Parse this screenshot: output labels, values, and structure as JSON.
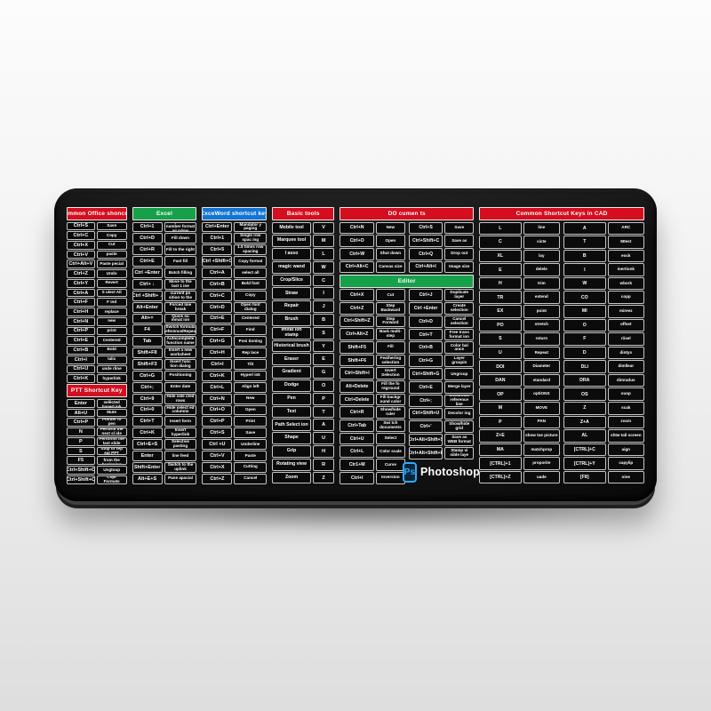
{
  "colors": {
    "red": "#d40d1f",
    "green": "#17a04a",
    "blue": "#1374d4",
    "ps_blue": "#31a8ff"
  },
  "photoshop": {
    "icon_text": "Ps",
    "label": "Photoshop"
  },
  "pad": {
    "columns": [
      {
        "sections": [
          {
            "header": {
              "label": "Common Office shonculs",
              "color": "#d40d1f"
            },
            "halves": [
              {
                "rows": [
                  [
                    "Ctrl+S",
                    "Save"
                  ],
                  [
                    "Ctrl+C",
                    "Copy"
                  ],
                  [
                    "Ctrl+X",
                    "Cut"
                  ],
                  [
                    "Ctrl+V",
                    "paste"
                  ],
                  [
                    "Ctrl+Alt+V",
                    "Paste pecial"
                  ],
                  [
                    "Ctrl+Z",
                    "Undo"
                  ],
                  [
                    "Ctrl+Y",
                    "Revert"
                  ],
                  [
                    "Ctrl+A",
                    "S ulect All"
                  ],
                  [
                    "Ctrl+F",
                    "F ind"
                  ],
                  [
                    "Ctrl+H",
                    "replace"
                  ],
                  [
                    "Ctrl+N",
                    "new"
                  ],
                  [
                    "Ctrl+P",
                    "print"
                  ],
                  [
                    "Ctrl+E",
                    "Centered"
                  ],
                  [
                    "Ctrl+B",
                    "Bold"
                  ],
                  [
                    "Ctrl+I",
                    "talic"
                  ],
                  [
                    "Ctrl+U",
                    "unde rline"
                  ],
                  [
                    "Ctrl+K",
                    "hyperlink"
                  ]
                ]
              }
            ]
          },
          {
            "header": {
              "label": "PTT Shortcut Key",
              "color": "#d40d1f"
            },
            "halves": [
              {
                "rows": [
                  [
                    "Enter",
                    "Open selected hyperl ink"
                  ],
                  [
                    "Alt+U",
                    "Mute"
                  ],
                  [
                    "Ctrl+P",
                    "Pointer to pen"
                  ],
                  [
                    "N",
                    "Perform the next sl ide"
                  ],
                  [
                    "P",
                    "Performs the last slide"
                  ],
                  [
                    "S",
                    "Stop or rep eat PPT"
                  ],
                  [
                    "F5",
                    "Run PPT from the beginning"
                  ],
                  [
                    "Ctrl+Shift+O",
                    "Ungtoup"
                  ],
                  [
                    "Ctrl+Shift+C",
                    "Copr Formats"
                  ]
                ]
              }
            ]
          }
        ]
      },
      {
        "sections": [
          {
            "header": {
              "label": "Excel",
              "color": "#17a04a"
            },
            "halves": [
              {
                "rows": [
                  [
                    "Ctrl+1",
                    "Open the number format wi ndow"
                  ],
                  [
                    "Ctrl+D",
                    "Fill down"
                  ],
                  [
                    "Ctrl+R",
                    "Fill to the right"
                  ],
                  [
                    "Ctrl+E",
                    "Fast fill"
                  ],
                  [
                    "Ctrl +Enter",
                    "Batch filling"
                  ],
                  [
                    "Ctrl+ ↓",
                    "Move to the last 1 ine"
                  ],
                  [
                    "Ctrl +Shift+ ↓",
                    "Check the current po sition to the last 1 ine"
                  ],
                  [
                    "Alt+Enter",
                    "Forced line break"
                  ],
                  [
                    "Alt+=",
                    "Quick su mmat ion"
                  ],
                  [
                    "F4",
                    "Switch formula reference/Repeat"
                  ],
                  [
                    "Tab",
                    "Autocomplete function name"
                  ],
                  [
                    "Shift+FII",
                    "Insert a new worksheet"
                  ],
                  [
                    "Shift+F3",
                    "Insert func tion dialog"
                  ],
                  [
                    "Ctrl+G",
                    "Positioning"
                  ],
                  [
                    "Ctrl+;",
                    "Enter date"
                  ],
                  [
                    "Ctrl+9",
                    "Hide sele cted rows"
                  ],
                  [
                    "Ctrl+0",
                    "Hide select ed columns"
                  ],
                  [
                    "Ctrl+T",
                    "Insert form"
                  ],
                  [
                    "Ctrl+K",
                    "Insert hyperlink"
                  ],
                  [
                    "Ctrl+E+S",
                    "Selective pasting"
                  ],
                  [
                    "Enter",
                    "line feed"
                  ],
                  [
                    "Shift+Enter",
                    "Switch to the uplink"
                  ],
                  [
                    "Alt+E+S",
                    "Pane apacial"
                  ]
                ]
              }
            ]
          }
        ]
      },
      {
        "sections": [
          {
            "header": {
              "label": "ExceWord shortcut key",
              "color": "#1374d4"
            },
            "halves": [
              {
                "rows": [
                  [
                    "Ctrl+Enter",
                    "Mandator y paging"
                  ],
                  [
                    "Ctrl+1",
                    "Single row spac ing"
                  ],
                  [
                    "Ctrl+5",
                    "1.5 times row spacing"
                  ],
                  [
                    "Ctrl +Shift+C",
                    "Copy format"
                  ],
                  [
                    "Ctrl+A",
                    "select all"
                  ],
                  [
                    "Ctrl+B",
                    "Bold font"
                  ],
                  [
                    "Ctrl+C",
                    "Copy"
                  ],
                  [
                    "Ctrl+D",
                    "Open font dialog"
                  ],
                  [
                    "Ctrl+E",
                    "Centered"
                  ],
                  [
                    "Ctrl+F",
                    "Find"
                  ],
                  [
                    "Ctrl+G",
                    "Posi tioning"
                  ],
                  [
                    "Ctrl+H",
                    "Rep lace"
                  ],
                  [
                    "Ctrl+I",
                    "Tilt"
                  ],
                  [
                    "Ctrl+K",
                    "Hyperl ink"
                  ],
                  [
                    "Ctrl+L",
                    "Align left"
                  ],
                  [
                    "Ctrl+N",
                    "New"
                  ],
                  [
                    "Ctrl+O",
                    "Open"
                  ],
                  [
                    "Ctrl+P",
                    "Print"
                  ],
                  [
                    "Ctrl+S",
                    "Save"
                  ],
                  [
                    "Ctrl +U",
                    "Underline"
                  ],
                  [
                    "Ctrl+V",
                    "Paste"
                  ],
                  [
                    "Ctrl+X",
                    "Cutting"
                  ],
                  [
                    "Ctrl+Z",
                    "Cancel"
                  ]
                ]
              }
            ]
          }
        ]
      },
      {
        "sections": [
          {
            "header": {
              "label": "Basic tools",
              "color": "#d40d1f"
            },
            "halves": [
              {
                "rows": [
                  [
                    "Mobile tool",
                    "V"
                  ],
                  [
                    "Marquee tool",
                    "M"
                  ],
                  [
                    "I asso",
                    "L"
                  ],
                  [
                    "magic wand",
                    "W"
                  ],
                  [
                    "Crop/Slice",
                    "C"
                  ],
                  [
                    "Straw",
                    "I"
                  ],
                  [
                    "Repair",
                    "J"
                  ],
                  [
                    "Brush",
                    "B"
                  ],
                  [
                    "Imitat ion stamp",
                    "S"
                  ],
                  [
                    "Historical brush",
                    "Y"
                  ],
                  [
                    "Eraser",
                    "E"
                  ],
                  [
                    "Gradient",
                    "G"
                  ],
                  [
                    "Dodge",
                    "O"
                  ],
                  [
                    "Pen",
                    "P"
                  ],
                  [
                    "Text",
                    "T"
                  ],
                  [
                    "Path Select ion",
                    "A"
                  ],
                  [
                    "Shape",
                    "U"
                  ],
                  [
                    "Grip",
                    "H"
                  ],
                  [
                    "Rotating view",
                    "R"
                  ],
                  [
                    "Zoom",
                    "Z"
                  ]
                ]
              }
            ]
          }
        ]
      },
      {
        "sections": [
          {
            "header": {
              "label": "DO cumen ts",
              "color": "#d40d1f"
            },
            "halves": [
              {
                "rows": [
                  [
                    "Ctrl+N",
                    "New"
                  ],
                  [
                    "Ctrl+O",
                    "Open"
                  ],
                  [
                    "Ctrl+W",
                    "Shut down"
                  ],
                  [
                    "Ctrl+Alt+C",
                    "Canvas size"
                  ]
                ]
              },
              {
                "rows": [
                  [
                    "Ctrl+S",
                    "Save"
                  ],
                  [
                    "Ctrl+Shift+C",
                    "Save as"
                  ],
                  [
                    "Ctrl+Q",
                    "Drop out"
                  ],
                  [
                    "Ctrl+Alt+I",
                    "Image size"
                  ]
                ]
              }
            ]
          },
          {
            "header": {
              "label": "Editor",
              "color": "#17a04a"
            },
            "halves": [
              {
                "rows": [
                  [
                    "Ctrl+X",
                    "Cut"
                  ],
                  [
                    "Ctrl+Z",
                    "Step Backward"
                  ],
                  [
                    "Ctrl+Shift+Z",
                    "Step Forward"
                  ],
                  [
                    "Ctrl+Alt+Z",
                    "Back multi-step"
                  ],
                  [
                    "Shift+F5",
                    "Fill"
                  ],
                  [
                    "Shift+F6",
                    "Feathering selection"
                  ],
                  [
                    "Ctrl+Shift+I",
                    "Invert Selection"
                  ],
                  [
                    "Alt+Delete",
                    "Fill the fo reground"
                  ],
                  [
                    "Ctrl+Delete",
                    "Fill backgr ound color"
                  ],
                  [
                    "Ctrl+R",
                    "Show/hide ruler"
                  ],
                  [
                    "Ctrl+Tab",
                    "Swi tch documents"
                  ],
                  [
                    "Ctrl+U",
                    "Select"
                  ],
                  [
                    "Ctrl+L",
                    "Color scale"
                  ],
                  [
                    "Ctr1+M",
                    "Curve"
                  ],
                  [
                    "Ctrl+I",
                    "Inversion"
                  ]
                ]
              },
              {
                "logo": true,
                "rows": [
                  [
                    "Ctrl+J",
                    "Duplicate layer"
                  ],
                  [
                    "Ctrl +Enter",
                    "Create selection"
                  ],
                  [
                    "Ctrl+D",
                    "Cancel selection"
                  ],
                  [
                    "Ctrl+T",
                    "Free trans format ion"
                  ],
                  [
                    "Ctrl+B",
                    "Color bal ance"
                  ],
                  [
                    "Ctrl+G",
                    "Layer groupin"
                  ],
                  [
                    "Ctrl+Shift+G",
                    "Ungroup"
                  ],
                  [
                    "Ctrl+E",
                    "Merge layer"
                  ],
                  [
                    "Ctrl+;",
                    "Show/hide reference line"
                  ],
                  [
                    "Ctrl+Shift+U",
                    "Decolor ing"
                  ],
                  [
                    "Ctrl+'",
                    "Show/hide grid"
                  ],
                  [
                    "Ctrl+Alt+Shift+S",
                    "Save as WEB format"
                  ],
                  [
                    "Ctrl+Alt+Shift+E",
                    "Stamp vi sible laye"
                  ]
                ]
              }
            ]
          }
        ]
      },
      {
        "sections": [
          {
            "header": {
              "label": "Common Shortcut Keys in CAD",
              "color": "#d40d1f"
            },
            "halves": [
              {
                "rows": [
                  [
                    "L",
                    "line"
                  ],
                  [
                    "C",
                    "cicte"
                  ],
                  [
                    "XL",
                    "lay"
                  ],
                  [
                    "E",
                    "delele"
                  ],
                  [
                    "H",
                    "trim"
                  ],
                  [
                    "TR",
                    "extend"
                  ],
                  [
                    "EX",
                    "point"
                  ],
                  [
                    "PO",
                    "stretch"
                  ],
                  [
                    "S",
                    "roturn"
                  ],
                  [
                    "U",
                    "Repeat"
                  ],
                  [
                    "DOI",
                    "Diameter"
                  ],
                  [
                    "DAN",
                    "standard"
                  ],
                  [
                    "OP",
                    "optiONS"
                  ],
                  [
                    "M",
                    "MOVE"
                  ],
                  [
                    "P",
                    "PAN"
                  ],
                  [
                    "Z+E",
                    "show tue picture"
                  ],
                  [
                    "MA",
                    "matchprop"
                  ],
                  [
                    "[CTRL]+1",
                    "proporite"
                  ],
                  [
                    "[CTRL]+Z",
                    "uade"
                  ]
                ]
              },
              {
                "rows": [
                  [
                    "A",
                    "ARC"
                  ],
                  [
                    "T",
                    "Mtest"
                  ],
                  [
                    "B",
                    "eock"
                  ],
                  [
                    "I",
                    "inertionk"
                  ],
                  [
                    "W",
                    "wbork"
                  ],
                  [
                    "CO",
                    "copp"
                  ],
                  [
                    "MI",
                    "mireez"
                  ],
                  [
                    "O",
                    "offset"
                  ],
                  [
                    "F",
                    "riisel"
                  ],
                  [
                    "D",
                    "dintys"
                  ],
                  [
                    "DLI",
                    "dimllear"
                  ],
                  [
                    "DRA",
                    "dimradus"
                  ],
                  [
                    "OS",
                    "ouop"
                  ],
                  [
                    "Z",
                    "scak"
                  ],
                  [
                    "Z+A",
                    "zocm"
                  ],
                  [
                    "AL",
                    "shtw tall screen"
                  ],
                  [
                    "[CTRL]+C",
                    "aign"
                  ],
                  [
                    "[CTRL]+Y",
                    "capylip"
                  ],
                  [
                    "[F8]",
                    "oine"
                  ]
                ]
              }
            ]
          }
        ]
      }
    ]
  }
}
